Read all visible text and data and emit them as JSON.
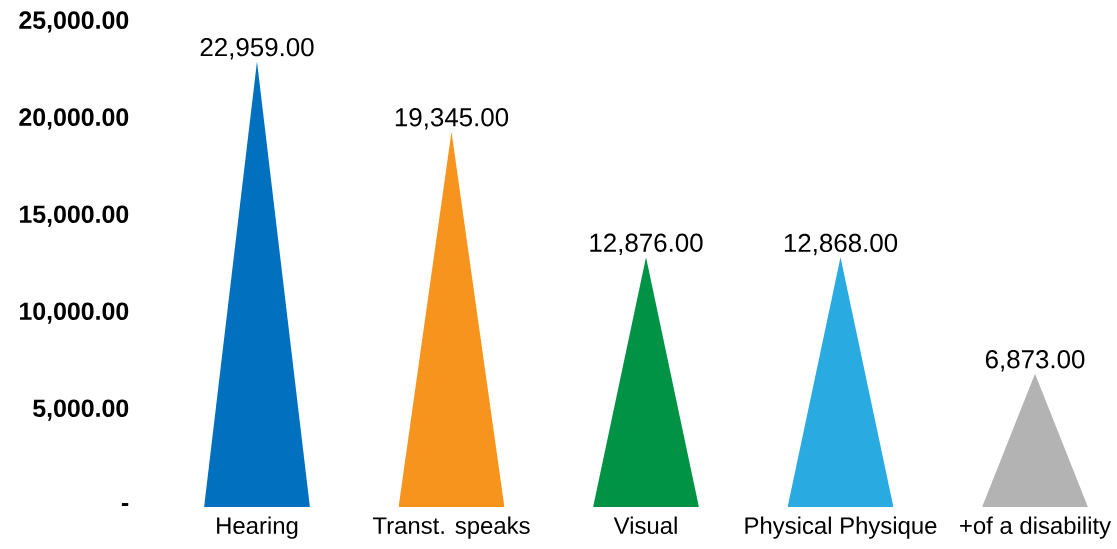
{
  "chart_data": {
    "type": "bar",
    "categories": [
      "Hearing",
      "Transt. speaks",
      "Visual",
      "Physical Physique",
      "+of a disability"
    ],
    "values": [
      22959,
      19345,
      12876,
      12868,
      6873
    ],
    "colors": [
      "#0070bf",
      "#f7941e",
      "#009245",
      "#29abe2",
      "#b3b3b3"
    ],
    "value_labels": [
      "22,959.00",
      "19,345.00",
      "12,876.00",
      "12,868.00",
      "6,873.00"
    ],
    "ylim": [
      0,
      25000
    ],
    "yticks": [
      {
        "value": 0,
        "label": "-"
      },
      {
        "value": 5000,
        "label": "5,000.00"
      },
      {
        "value": 10000,
        "label": "10,000.00"
      },
      {
        "value": 15000,
        "label": "15,000.00"
      },
      {
        "value": 20000,
        "label": "20,000.00"
      },
      {
        "value": 25000,
        "label": "25,000.00"
      }
    ]
  }
}
